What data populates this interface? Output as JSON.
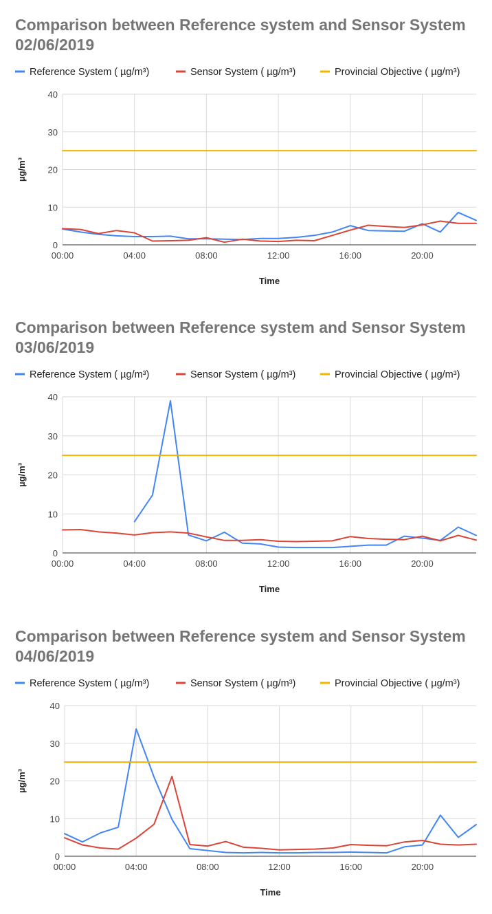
{
  "colors": {
    "reference": "#4285f4",
    "sensor": "#db4437",
    "objective": "#f4b400",
    "grid": "#d9d9d9",
    "axis": "#333333"
  },
  "chart_data": [
    {
      "type": "line",
      "title_line1": "Comparison between  Reference system and Sensor System",
      "title_line2": "02/06/2019",
      "xlabel": "Time",
      "ylabel": "µg/m³",
      "ylim": [
        0,
        40
      ],
      "yticks": [
        "0",
        "10",
        "20",
        "30",
        "40"
      ],
      "xticks": [
        "00:00",
        "04:00",
        "08:00",
        "12:00",
        "16:00",
        "20:00"
      ],
      "xlim_hours": [
        0,
        23
      ],
      "grid": true,
      "legend_position": "top",
      "series": [
        {
          "name": "Reference System ( µg/m³)",
          "key": "reference",
          "x": [
            0,
            1,
            2,
            3,
            4,
            5,
            6,
            7,
            8,
            9,
            10,
            11,
            12,
            13,
            14,
            15,
            16,
            17,
            18,
            19,
            20,
            21,
            22,
            23
          ],
          "values": [
            4.2,
            3.4,
            2.8,
            2.4,
            2.2,
            2.2,
            2.3,
            1.6,
            1.6,
            1.5,
            1.4,
            1.7,
            1.7,
            2.0,
            2.5,
            3.4,
            5.1,
            3.8,
            3.7,
            3.6,
            5.6,
            3.4,
            8.6,
            6.5
          ]
        },
        {
          "name": "Sensor System ( µg/m³)",
          "key": "sensor",
          "x": [
            0,
            1,
            2,
            3,
            4,
            5,
            6,
            7,
            8,
            9,
            10,
            11,
            12,
            13,
            14,
            15,
            16,
            17,
            18,
            19,
            20,
            21,
            22,
            23
          ],
          "values": [
            4.3,
            4.1,
            3.0,
            3.8,
            3.2,
            1.0,
            1.1,
            1.2,
            1.9,
            0.7,
            1.5,
            1.0,
            0.9,
            1.2,
            1.1,
            2.5,
            3.9,
            5.2,
            4.9,
            4.6,
            5.3,
            6.3,
            5.7,
            5.7
          ]
        },
        {
          "name": "Provincial Objective ( µg/m³)",
          "key": "objective",
          "x": [
            0,
            23
          ],
          "values": [
            25,
            25
          ]
        }
      ]
    },
    {
      "type": "line",
      "title_line1": "Comparison between  Reference system and Sensor System",
      "title_line2": "03/06/2019",
      "xlabel": "Time",
      "ylabel": "µg/m³",
      "ylim": [
        0,
        40
      ],
      "yticks": [
        "0",
        "10",
        "20",
        "30",
        "40"
      ],
      "xticks": [
        "00:00",
        "04:00",
        "08:00",
        "12:00",
        "16:00",
        "20:00"
      ],
      "xlim_hours": [
        0,
        23
      ],
      "grid": true,
      "legend_position": "top",
      "series": [
        {
          "name": "Reference System ( µg/m³)",
          "key": "reference",
          "x": [
            4,
            5,
            6,
            7,
            8,
            9,
            10,
            11,
            12,
            13,
            14,
            15,
            16,
            17,
            18,
            19,
            20,
            21,
            22,
            23
          ],
          "values": [
            8.0,
            14.8,
            39.0,
            4.6,
            3.1,
            5.3,
            2.5,
            2.3,
            1.5,
            1.4,
            1.4,
            1.4,
            1.7,
            2.0,
            2.0,
            4.3,
            3.8,
            3.2,
            6.6,
            4.5
          ]
        },
        {
          "name": "Sensor System ( µg/m³)",
          "key": "sensor",
          "x": [
            0,
            1,
            2,
            3,
            4,
            5,
            6,
            7,
            8,
            9,
            10,
            11,
            12,
            13,
            14,
            15,
            16,
            17,
            18,
            19,
            20,
            21,
            22,
            23
          ],
          "values": [
            5.9,
            6.0,
            5.4,
            5.1,
            4.6,
            5.2,
            5.4,
            5.1,
            4.1,
            3.2,
            3.2,
            3.4,
            3.0,
            2.9,
            3.0,
            3.1,
            4.2,
            3.7,
            3.5,
            3.4,
            4.3,
            3.1,
            4.5,
            3.3
          ]
        },
        {
          "name": "Provincial Objective ( µg/m³)",
          "key": "objective",
          "x": [
            0,
            23
          ],
          "values": [
            25,
            25
          ]
        }
      ]
    },
    {
      "type": "line",
      "title_line1": "Comparison between  Reference system and Sensor System",
      "title_line2": "04/06/2019",
      "xlabel": "Time",
      "ylabel": "µg/m³",
      "ylim": [
        0,
        40
      ],
      "yticks": [
        "0",
        "10",
        "20",
        "30",
        "40"
      ],
      "xticks": [
        "00:00",
        "04:00",
        "08:00",
        "12:00",
        "16:00",
        "20:00"
      ],
      "xlim_hours": [
        0,
        23
      ],
      "grid": true,
      "legend_position": "top",
      "series": [
        {
          "name": "Reference System ( µg/m³)",
          "key": "reference",
          "x": [
            0,
            1,
            2,
            3,
            4,
            5,
            6,
            7,
            8,
            9,
            10,
            11,
            12,
            13,
            14,
            15,
            16,
            17,
            18,
            19,
            20,
            21,
            22,
            23
          ],
          "values": [
            6.0,
            3.8,
            6.2,
            7.7,
            33.8,
            21.0,
            9.8,
            2.0,
            1.5,
            1.0,
            0.9,
            1.0,
            0.9,
            0.9,
            1.0,
            1.0,
            1.1,
            1.0,
            0.9,
            2.5,
            3.0,
            10.9,
            5.0,
            8.4
          ]
        },
        {
          "name": "Sensor System ( µg/m³)",
          "key": "sensor",
          "x": [
            0,
            1,
            2,
            3,
            4,
            5,
            6,
            7,
            8,
            9,
            10,
            11,
            12,
            13,
            14,
            15,
            16,
            17,
            18,
            19,
            20,
            21,
            22,
            23
          ],
          "values": [
            4.9,
            3.0,
            2.2,
            1.9,
            4.8,
            8.5,
            21.2,
            3.1,
            2.7,
            3.9,
            2.4,
            2.1,
            1.7,
            1.8,
            1.9,
            2.2,
            3.1,
            2.9,
            2.8,
            3.8,
            4.2,
            3.2,
            3.0,
            3.2
          ]
        },
        {
          "name": "Provincial Objective ( µg/m³)",
          "key": "objective",
          "x": [
            0,
            23
          ],
          "values": [
            25,
            25
          ]
        }
      ]
    }
  ]
}
